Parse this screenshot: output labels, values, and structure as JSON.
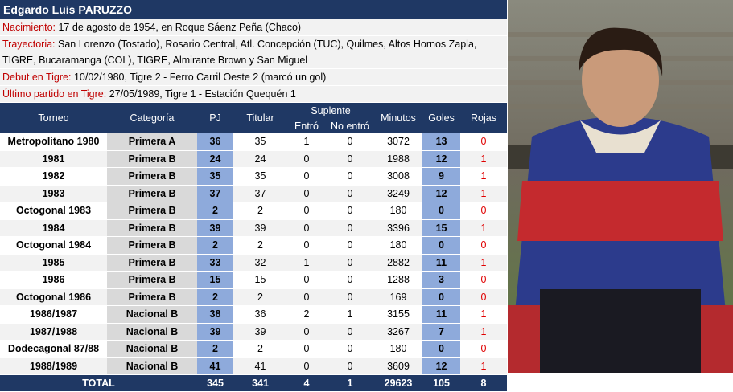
{
  "header": {
    "title": "Edgardo Luis PARUZZO"
  },
  "info": [
    {
      "label": "Nacimiento:",
      "text": "17 de agosto de 1954, en Roque Sáenz Peña (Chaco)"
    },
    {
      "label": "Trayectoria:",
      "text": "San Lorenzo (Tostado), Rosario Central, Atl. Concepción (TUC), Quilmes, Altos Hornos Zapla, TIGRE, Bucaramanga (COL), TIGRE, Almirante Brown y San Miguel"
    },
    {
      "label": "Debut en Tigre:",
      "text": "10/02/1980, Tigre 2 - Ferro Carril Oeste 2 (marcó un gol)"
    },
    {
      "label": "Último partido en Tigre:",
      "text": "27/05/1989, Tigre 1 - Estación Quequén 1"
    }
  ],
  "table": {
    "columns": [
      "Torneo",
      "Categoría",
      "PJ",
      "Titular",
      "Entró",
      "No entró",
      "Minutos",
      "Goles",
      "Rojas"
    ],
    "group": "Suplente",
    "rows": [
      [
        "Metropolitano 1980",
        "Primera A",
        36,
        35,
        1,
        0,
        3072,
        13,
        0
      ],
      [
        "1981",
        "Primera B",
        24,
        24,
        0,
        0,
        1988,
        12,
        1
      ],
      [
        "1982",
        "Primera B",
        35,
        35,
        0,
        0,
        3008,
        9,
        1
      ],
      [
        "1983",
        "Primera B",
        37,
        37,
        0,
        0,
        3249,
        12,
        1
      ],
      [
        "Octogonal 1983",
        "Primera B",
        2,
        2,
        0,
        0,
        180,
        0,
        0
      ],
      [
        "1984",
        "Primera B",
        39,
        39,
        0,
        0,
        3396,
        15,
        1
      ],
      [
        "Octogonal 1984",
        "Primera B",
        2,
        2,
        0,
        0,
        180,
        0,
        0
      ],
      [
        "1985",
        "Primera B",
        33,
        32,
        1,
        0,
        2882,
        11,
        1
      ],
      [
        "1986",
        "Primera B",
        15,
        15,
        0,
        0,
        1288,
        3,
        0
      ],
      [
        "Octogonal 1986",
        "Primera B",
        2,
        2,
        0,
        0,
        169,
        0,
        0
      ],
      [
        "1986/1987",
        "Nacional B",
        38,
        36,
        2,
        1,
        3155,
        11,
        1
      ],
      [
        "1987/1988",
        "Nacional B",
        39,
        39,
        0,
        0,
        3267,
        7,
        1
      ],
      [
        "Dodecagonal 87/88",
        "Nacional B",
        2,
        2,
        0,
        0,
        180,
        0,
        0
      ],
      [
        "1988/1989",
        "Nacional B",
        41,
        41,
        0,
        0,
        3609,
        12,
        1
      ]
    ],
    "total": [
      "TOTAL",
      345,
      341,
      4,
      1,
      29623,
      105,
      8
    ]
  }
}
